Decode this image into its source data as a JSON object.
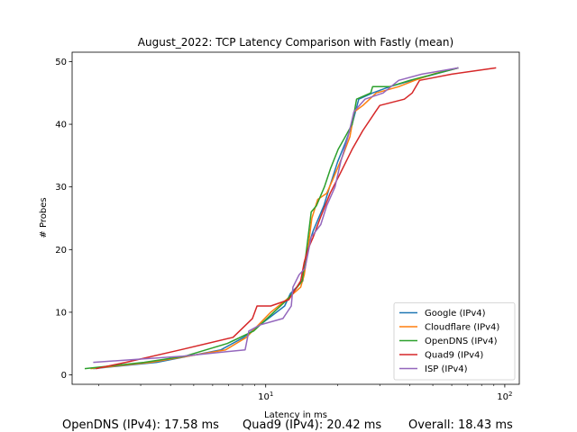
{
  "chart_data": {
    "type": "line",
    "title": "August_2022: TCP Latency Comparison with Fastly (mean)",
    "xlabel": "Latency in ms",
    "ylabel": "# Probes",
    "xscale": "log",
    "xlim": [
      1.55,
      115
    ],
    "ylim": [
      -1.5,
      51.5
    ],
    "x_ticks": [
      {
        "value": 10,
        "label": "10^1"
      },
      {
        "value": 100,
        "label": "10^2"
      }
    ],
    "y_ticks": [
      0,
      10,
      20,
      30,
      40,
      50
    ],
    "grid": false,
    "legend_position": "lower-right",
    "series": [
      {
        "name": "Google (IPv4)",
        "color": "#1f77b4",
        "x": [
          1.9,
          3.5,
          6.5,
          8.1,
          12.0,
          12.7,
          14.3,
          14.9,
          15.8,
          17.5,
          18.5,
          20.0,
          21.5,
          23.0,
          24.5,
          28.0,
          33.0,
          41.0,
          51.0,
          64.0
        ],
        "y": [
          1,
          2,
          4,
          6,
          11,
          13,
          15,
          20,
          23,
          27,
          30,
          34,
          37,
          40,
          44,
          45,
          46,
          47,
          48,
          49
        ]
      },
      {
        "name": "Cloudflare (IPv4)",
        "color": "#ff7f0e",
        "x": [
          1.85,
          3.3,
          6.8,
          8.3,
          10.5,
          12.2,
          14.0,
          14.5,
          15.0,
          15.6,
          16.5,
          18.0,
          19.0,
          21.0,
          22.5,
          23.5,
          25.5,
          29.0,
          36.0,
          42.0,
          50.0,
          64.0
        ],
        "y": [
          1,
          2,
          4,
          6,
          10,
          12,
          14,
          16,
          20,
          25,
          28,
          29,
          31,
          35,
          38,
          42,
          43,
          45,
          46,
          47,
          48,
          49
        ]
      },
      {
        "name": "OpenDNS (IPv4)",
        "color": "#2ca02c",
        "x": [
          1.75,
          3.1,
          4.6,
          6.9,
          8.9,
          10.8,
          12.3,
          14.2,
          14.6,
          15.5,
          16.3,
          17.6,
          18.7,
          20.1,
          21.5,
          23.0,
          24.0,
          27.5,
          28.0,
          33.0,
          40.0,
          64.0
        ],
        "y": [
          1,
          2,
          3,
          5,
          7,
          10,
          12,
          15,
          18,
          26,
          27,
          30,
          33,
          36,
          38,
          40,
          44,
          45,
          46,
          46,
          47,
          49
        ]
      },
      {
        "name": "Quad9 (IPv4)",
        "color": "#d62728",
        "x": [
          1.95,
          2.6,
          4.4,
          7.3,
          8.8,
          9.2,
          10.5,
          12.5,
          14.0,
          14.5,
          15.0,
          15.8,
          16.9,
          18.6,
          20.4,
          23.0,
          25.5,
          28.8,
          30.0,
          38.0,
          41.0,
          44.0,
          60.0,
          92.0
        ],
        "y": [
          1,
          2,
          4,
          6,
          9,
          11,
          11,
          12,
          15,
          18,
          20,
          22,
          25,
          29,
          32,
          36,
          39,
          42,
          43,
          44,
          45,
          47,
          48,
          49
        ]
      },
      {
        "name": "ISP (IPv4)",
        "color": "#9467bd",
        "x": [
          1.9,
          4.5,
          8.2,
          8.5,
          9.5,
          11.8,
          12.8,
          13.0,
          13.8,
          14.6,
          15.5,
          17.0,
          18.0,
          19.5,
          20.6,
          22.1,
          23.4,
          26.0,
          31.0,
          36.0,
          45.0,
          64.0
        ],
        "y": [
          2,
          3,
          4,
          7,
          8,
          9,
          11,
          14,
          16,
          17,
          22,
          24,
          27,
          30,
          34,
          38,
          42,
          44,
          45,
          47,
          48,
          49
        ]
      }
    ]
  },
  "footer": {
    "opendns": "OpenDNS (IPv4): 17.58 ms",
    "quad9": "Quad9 (IPv4): 20.42 ms",
    "overall": "Overall: 18.43 ms"
  }
}
